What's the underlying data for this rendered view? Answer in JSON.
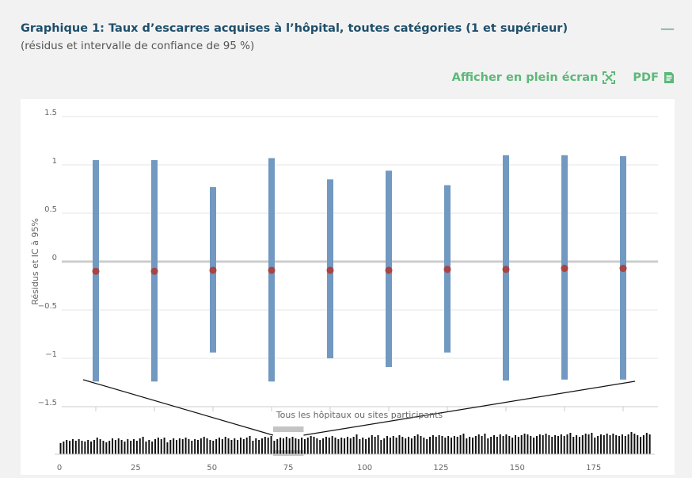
{
  "header": {
    "title": "Graphique 1: Taux d’escarres acquises à l’hôpital, toutes catégories (1 et supérieur)",
    "subtitle": "(résidus et intervalle de confiance de 95 %)",
    "collapse_label": "—"
  },
  "toolbar": {
    "fullscreen_label": "Afficher en plein écran",
    "pdf_label": "PDF"
  },
  "colors": {
    "accent": "#5cb878",
    "title": "#1f4f6b",
    "bar": "#7199c1",
    "point": "#a84444",
    "zero_line": "#cccccc"
  },
  "chart_data": {
    "type": "bar",
    "ylabel": "Résidus et IC à 95%",
    "xlabel": "Tous les hôpitaux ou sites participants",
    "ylim": [
      -1.5,
      1.5
    ],
    "yticks": [
      1.5,
      1,
      0.5,
      0,
      -0.5,
      -1,
      -1.5
    ],
    "ytick_labels": [
      "1.5",
      "1",
      "0.5",
      "0",
      "−0.5",
      "−1",
      "−1.5"
    ],
    "series": [
      {
        "lower": [
          -1.24,
          -1.24,
          -0.94,
          -1.24,
          -1.0,
          -1.09,
          -0.94,
          -1.23,
          -1.22,
          -1.22
        ],
        "upper": [
          1.05,
          1.05,
          0.77,
          1.07,
          0.85,
          0.94,
          0.79,
          1.1,
          1.1,
          1.09
        ],
        "residual": [
          -0.1,
          -0.1,
          -0.09,
          -0.09,
          -0.09,
          -0.09,
          -0.08,
          -0.08,
          -0.07,
          -0.07
        ]
      }
    ],
    "navigator": {
      "xticks": [
        0,
        25,
        50,
        75,
        100,
        125,
        150,
        175
      ],
      "xrange": [
        0,
        194
      ],
      "selection": [
        70,
        80
      ]
    }
  }
}
